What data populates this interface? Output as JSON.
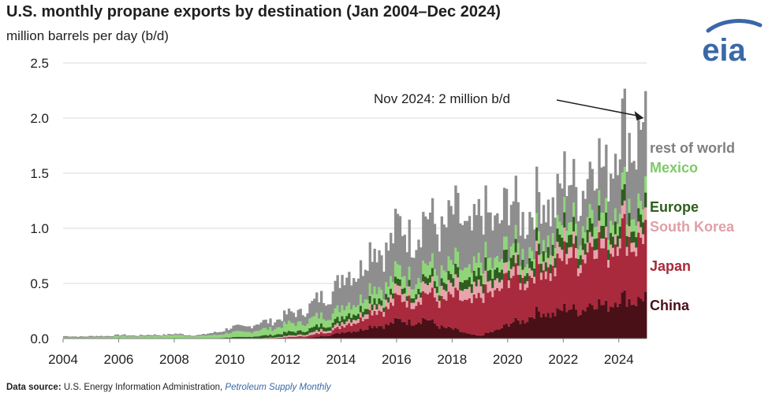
{
  "chart_data": {
    "type": "area",
    "stacked": true,
    "title": "U.S. monthly propane exports by destination (Jan 2004–Dec 2024)",
    "subtitle": "million barrels per day (b/d)",
    "xlabel": "",
    "ylabel": "million barrels per day (b/d)",
    "ylim": [
      0,
      2.5
    ],
    "yticks": [
      "0.0",
      "0.5",
      "1.0",
      "1.5",
      "2.0",
      "2.5"
    ],
    "xticks": [
      "2004",
      "2006",
      "2008",
      "2010",
      "2012",
      "2014",
      "2016",
      "2018",
      "2020",
      "2022",
      "2024"
    ],
    "grid": "horizontal",
    "legend": "right, labels at series ends",
    "x": [
      2004,
      2005,
      2006,
      2007,
      2008,
      2009,
      2010,
      2011,
      2012,
      2013,
      2014,
      2015,
      2016,
      2017,
      2018,
      2019,
      2020,
      2021,
      2022,
      2023,
      2024.9
    ],
    "series": [
      {
        "name": "China",
        "color": "#4a1018",
        "values": [
          0.0,
          0.0,
          0.0,
          0.0,
          0.0,
          0.0,
          0.0,
          0.0,
          0.0,
          0.01,
          0.05,
          0.1,
          0.15,
          0.17,
          0.08,
          0.02,
          0.12,
          0.22,
          0.25,
          0.3,
          0.38
        ]
      },
      {
        "name": "Japan",
        "color": "#a82a3c",
        "values": [
          0.0,
          0.0,
          0.0,
          0.0,
          0.0,
          0.0,
          0.0,
          0.0,
          0.01,
          0.02,
          0.05,
          0.12,
          0.18,
          0.22,
          0.27,
          0.32,
          0.4,
          0.38,
          0.45,
          0.52,
          0.58
        ]
      },
      {
        "name": "South Korea",
        "color": "#e6a4ac",
        "values": [
          0.0,
          0.0,
          0.0,
          0.0,
          0.0,
          0.0,
          0.0,
          0.0,
          0.01,
          0.02,
          0.03,
          0.05,
          0.07,
          0.08,
          0.09,
          0.1,
          0.08,
          0.07,
          0.1,
          0.09,
          0.1
        ]
      },
      {
        "name": "Europe",
        "color": "#2e5e1e",
        "values": [
          0.0,
          0.0,
          0.0,
          0.0,
          0.0,
          0.0,
          0.01,
          0.02,
          0.03,
          0.04,
          0.05,
          0.06,
          0.05,
          0.06,
          0.07,
          0.09,
          0.1,
          0.09,
          0.11,
          0.12,
          0.12
        ]
      },
      {
        "name": "Mexico",
        "color": "#8fd67a",
        "values": [
          0.01,
          0.01,
          0.02,
          0.02,
          0.03,
          0.02,
          0.04,
          0.05,
          0.07,
          0.08,
          0.09,
          0.1,
          0.11,
          0.11,
          0.11,
          0.11,
          0.1,
          0.1,
          0.11,
          0.12,
          0.13
        ]
      },
      {
        "name": "rest of world",
        "color": "#8e8e8e",
        "values": [
          0.01,
          0.01,
          0.01,
          0.01,
          0.01,
          0.01,
          0.04,
          0.06,
          0.08,
          0.13,
          0.25,
          0.32,
          0.38,
          0.4,
          0.43,
          0.4,
          0.37,
          0.32,
          0.33,
          0.36,
          0.69
        ]
      }
    ],
    "annotation": {
      "text": "Nov 2024: 2 million b/d",
      "x": 2024.9,
      "y": 2.0
    }
  },
  "source": {
    "label": "Data source:",
    "text": "U.S. Energy Information Administration,",
    "publication": "Petroleum Supply Monthly"
  },
  "logo": {
    "text": "eia",
    "color": "#3a68a8"
  }
}
